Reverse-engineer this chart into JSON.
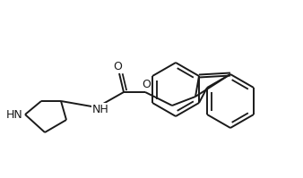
{
  "bg_color": "#ffffff",
  "line_color": "#1a1a1a",
  "text_color": "#1a1a1a",
  "line_width": 1.4,
  "figsize": [
    3.38,
    1.99
  ],
  "dpi": 100,
  "xlim": [
    0,
    338
  ],
  "ylim": [
    0,
    199
  ]
}
